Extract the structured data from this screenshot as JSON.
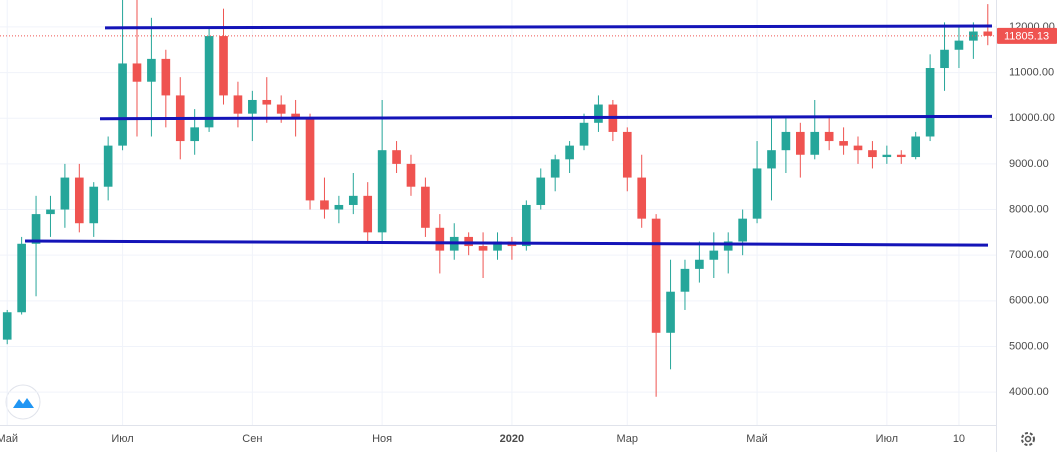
{
  "chart_data": {
    "type": "candlestick",
    "categories": [
      "Май",
      null,
      null,
      null,
      null,
      null,
      null,
      null,
      "Июл",
      null,
      null,
      null,
      null,
      null,
      null,
      null,
      null,
      "Сен",
      null,
      null,
      null,
      null,
      null,
      null,
      null,
      null,
      "Ноя",
      null,
      null,
      null,
      null,
      null,
      null,
      null,
      null,
      "2020",
      null,
      null,
      null,
      null,
      null,
      null,
      null,
      "Мар",
      null,
      null,
      null,
      null,
      null,
      null,
      null,
      null,
      "Май",
      null,
      null,
      null,
      null,
      null,
      null,
      null,
      null,
      "Июл",
      null,
      null,
      null,
      null,
      "10",
      null,
      null
    ],
    "open": [
      5150,
      5750,
      7250,
      7900,
      8000,
      8700,
      7700,
      8500,
      9400,
      11200,
      10800,
      11300,
      10500,
      9500,
      9800,
      11800,
      10500,
      10100,
      10400,
      10300,
      10100,
      10000,
      8200,
      8000,
      8100,
      8300,
      7500,
      9300,
      9000,
      8500,
      7600,
      7100,
      7400,
      7200,
      7100,
      7300,
      7200,
      8100,
      8700,
      9100,
      9400,
      9900,
      10300,
      9700,
      8700,
      7800,
      5300,
      6200,
      6700,
      6900,
      7100,
      7300,
      7800,
      8900,
      9300,
      9700,
      9200,
      9700,
      9500,
      9400,
      9300,
      9150,
      9200,
      9150,
      9600,
      11100,
      11500,
      11700,
      11900
    ],
    "high": [
      5800,
      7400,
      8300,
      8300,
      9000,
      9000,
      8600,
      9600,
      12590,
      12590,
      12200,
      11500,
      10900,
      10200,
      12000,
      12400,
      10800,
      10600,
      10900,
      10500,
      10400,
      10100,
      8700,
      8300,
      8800,
      8600,
      10400,
      9500,
      9200,
      8700,
      7900,
      7700,
      7500,
      7500,
      7500,
      7400,
      8200,
      8900,
      9200,
      9500,
      10100,
      10500,
      10400,
      9800,
      9200,
      7900,
      6900,
      6900,
      7300,
      7500,
      7500,
      8000,
      9500,
      10000,
      10000,
      9900,
      10400,
      10000,
      9800,
      9600,
      9500,
      9400,
      9300,
      9700,
      11400,
      12100,
      12000,
      12100,
      12500
    ],
    "low": [
      5050,
      5700,
      6100,
      7400,
      7600,
      7500,
      7400,
      8200,
      9300,
      9600,
      9600,
      9800,
      9100,
      9200,
      9700,
      10300,
      9800,
      9500,
      9900,
      9900,
      9600,
      8000,
      7800,
      7700,
      7900,
      7300,
      7300,
      8800,
      8300,
      7400,
      6600,
      6900,
      7000,
      6500,
      6900,
      6900,
      7100,
      8000,
      8400,
      8800,
      9300,
      9700,
      9500,
      8400,
      7600,
      3900,
      4500,
      5800,
      6400,
      6500,
      6600,
      7000,
      7700,
      8200,
      8800,
      8700,
      9100,
      9300,
      9200,
      9000,
      8900,
      9000,
      9000,
      9100,
      9500,
      10600,
      11100,
      11300,
      11600
    ],
    "close": [
      5750,
      7250,
      7900,
      8000,
      8700,
      7700,
      8500,
      9400,
      11200,
      10800,
      11300,
      10500,
      9500,
      9800,
      11800,
      10500,
      10100,
      10400,
      10300,
      10100,
      10000,
      8200,
      8000,
      8100,
      8300,
      7500,
      9300,
      9000,
      8500,
      7600,
      7100,
      7400,
      7200,
      7100,
      7300,
      7200,
      8100,
      8700,
      9100,
      9400,
      9900,
      10300,
      9700,
      8700,
      7800,
      5300,
      6200,
      6700,
      6900,
      7100,
      7300,
      7800,
      8900,
      9300,
      9700,
      9200,
      9700,
      9500,
      9400,
      9300,
      9150,
      9200,
      9150,
      9600,
      11100,
      11500,
      11700,
      11900,
      11805.13
    ],
    "up_color": "#26a69a",
    "down_color": "#ef5350",
    "last_price": 11805.13,
    "last_price_color": "#ef5350",
    "trend_lines": [
      {
        "values": [
          11980,
          12020
        ],
        "color": "#1414b8"
      },
      {
        "values": [
          9990,
          10040
        ],
        "color": "#1414b8"
      },
      {
        "values": [
          7310,
          7220
        ],
        "color": "#1414b8"
      }
    ],
    "ylim": [
      3280,
      12590
    ],
    "yticks": [
      {
        "value": 4000,
        "label": "4000.00"
      },
      {
        "value": 5000,
        "label": "5000.00"
      },
      {
        "value": 6000,
        "label": "6000.00"
      },
      {
        "value": 7000,
        "label": "7000.00"
      },
      {
        "value": 8000,
        "label": "8000.00"
      },
      {
        "value": 9000,
        "label": "9000.00"
      },
      {
        "value": 10000,
        "label": "10000.00"
      },
      {
        "value": 11000,
        "label": "11000.00"
      },
      {
        "value": 12000,
        "label": "12000.00"
      }
    ],
    "grid": true
  }
}
